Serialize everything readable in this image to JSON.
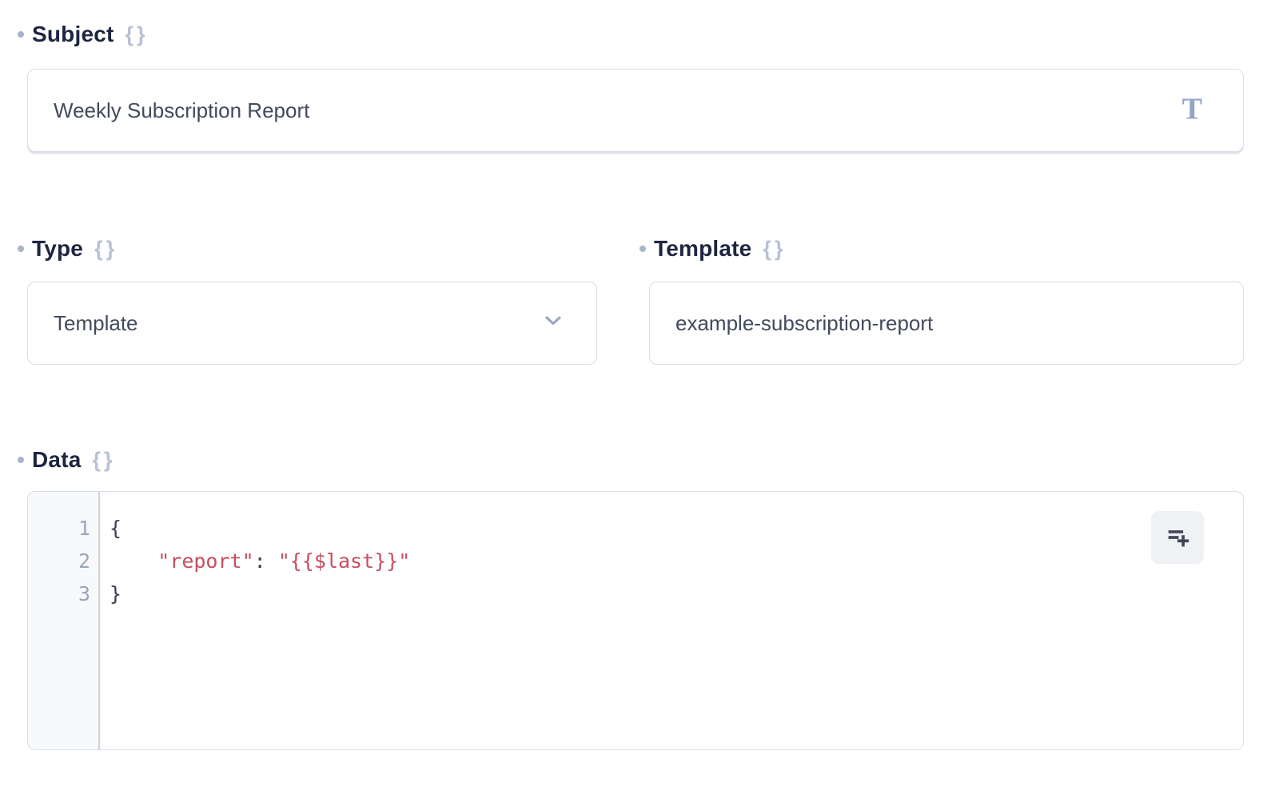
{
  "fields": {
    "subject": {
      "label": "Subject",
      "value": "Weekly Subscription Report"
    },
    "type": {
      "label": "Type",
      "selected_option": "Template"
    },
    "template": {
      "label": "Template",
      "value": "example-subscription-report"
    },
    "data": {
      "label": "Data"
    }
  },
  "icons": {
    "braces": "{}",
    "text_format": "T"
  },
  "editor": {
    "lines": [
      {
        "number": "1",
        "segments": [
          {
            "type": "plain",
            "text": "{"
          }
        ]
      },
      {
        "number": "2",
        "segments": [
          {
            "type": "plain",
            "text": "    "
          },
          {
            "type": "string",
            "text": "\"report\""
          },
          {
            "type": "plain",
            "text": ": "
          },
          {
            "type": "string",
            "text": "\"{{$last}}\""
          }
        ]
      },
      {
        "number": "3",
        "segments": [
          {
            "type": "plain",
            "text": "}"
          }
        ]
      }
    ]
  },
  "colors": {
    "label_text": "#1d2540",
    "required_dot": "#a9b3c9",
    "braces_icon": "#b8c1d5",
    "input_border": "#d9dde7",
    "input_text": "#424a5c",
    "chevron": "#9aa7c2",
    "text_format_icon": "#93a5c6",
    "code_string": "#c64f5e",
    "code_plain": "#383f4e",
    "line_number": "#9aa6ba",
    "gutter_bg": "#f8f9fb",
    "format_button_bg": "#eff1f4"
  }
}
